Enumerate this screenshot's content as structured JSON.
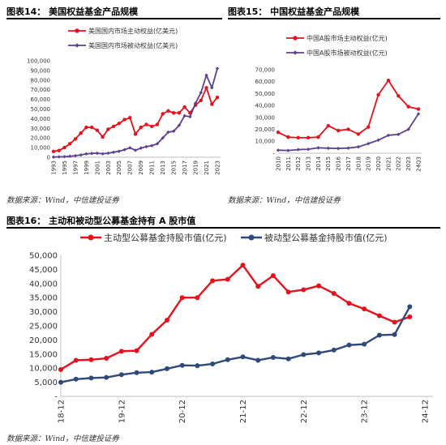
{
  "headers": {
    "fig14": "图表14：  美国权益基金产品规模",
    "fig15": "图表15：  中国权益基金产品规模",
    "fig16": "图表16：  主动和被动型公募基金持有 A 股市值"
  },
  "sources": {
    "fig14": "数据来源：Wind，中信建投证券",
    "fig15": "数据来源：Wind，中信建投证券",
    "fig16": "数据来源：Wind，中信建投证券"
  },
  "colors": {
    "active": "#e8101c",
    "passive": "#5e3f8f",
    "passive_blue": "#2f4a7a",
    "axis": "#bfbfbf"
  },
  "chart_data": [
    {
      "id": "fig14",
      "type": "line",
      "x": [
        "1993",
        "1994",
        "1995",
        "1996",
        "1997",
        "1998",
        "1999",
        "2000",
        "2001",
        "2002",
        "2003",
        "2004",
        "2005",
        "2006",
        "2007",
        "2008",
        "2009",
        "2010",
        "2011",
        "2012",
        "2013",
        "2014",
        "2015",
        "2016",
        "2017",
        "2018",
        "2019",
        "2020",
        "2021",
        "2022",
        "2023"
      ],
      "x_tick_labels": [
        "1993",
        "1995",
        "1997",
        "1999",
        "2001",
        "2003",
        "2005",
        "2007",
        "2009",
        "2011",
        "2013",
        "2015",
        "2017",
        "2019",
        "2021",
        "2023"
      ],
      "ylim": [
        0,
        100000
      ],
      "y_ticks": [
        0,
        10000,
        20000,
        30000,
        40000,
        50000,
        60000,
        70000,
        80000,
        90000,
        100000
      ],
      "y_tick_labels": [
        "0",
        "10,000",
        "20,000",
        "30,000",
        "40,000",
        "50,000",
        "60,000",
        "70,000",
        "80,000",
        "90,000",
        "100,000"
      ],
      "legend_position": "top",
      "series": [
        {
          "name": "美国国内市场主动权益(亿美元)",
          "marker": "circle",
          "values": [
            6000,
            7000,
            10000,
            14000,
            19000,
            25000,
            31000,
            31000,
            28000,
            21000,
            29000,
            32000,
            35000,
            39000,
            41000,
            24000,
            31000,
            34000,
            32000,
            34000,
            45000,
            48000,
            46000,
            46000,
            52000,
            46000,
            54000,
            59000,
            72000,
            55000,
            62000
          ]
        },
        {
          "name": "美国国内市场被动权益(亿美元)",
          "marker": "diamond",
          "values": [
            200,
            400,
            600,
            1000,
            1600,
            2400,
            3500,
            4000,
            4200,
            3600,
            4200,
            5200,
            6200,
            7800,
            9800,
            7200,
            9500,
            11000,
            12000,
            14000,
            20000,
            26000,
            27000,
            33000,
            43000,
            42000,
            56000,
            67000,
            85000,
            72000,
            92000
          ]
        }
      ]
    },
    {
      "id": "fig15",
      "type": "line",
      "x": [
        "2010",
        "2011",
        "2012",
        "2013",
        "2014",
        "2015",
        "2016",
        "2017",
        "2018",
        "2019",
        "2020",
        "2021",
        "2022",
        "2023",
        "24Q3"
      ],
      "x_tick_labels": [
        "2010",
        "2011",
        "2012",
        "2013",
        "2014",
        "2015",
        "2016",
        "2017",
        "2018",
        "2019",
        "2020",
        "2021",
        "2022",
        "2023",
        "24Q3"
      ],
      "ylim": [
        0,
        70000
      ],
      "y_ticks": [
        0,
        10000,
        20000,
        30000,
        40000,
        50000,
        60000,
        70000
      ],
      "y_tick_labels": [
        "-",
        "10,000",
        "20,000",
        "30,000",
        "40,000",
        "50,000",
        "60,000",
        "70,000"
      ],
      "legend_position": "top",
      "series": [
        {
          "name": "中国A股市场主动权益(亿元)",
          "marker": "circle",
          "values": [
            17500,
            13500,
            13000,
            13000,
            13500,
            23000,
            19000,
            20000,
            16000,
            22000,
            49000,
            61000,
            48000,
            39000,
            37000
          ]
        },
        {
          "name": "中国A股市场被动权益(亿元)",
          "marker": "diamond",
          "values": [
            2500,
            2300,
            3000,
            3300,
            4500,
            4200,
            4000,
            4300,
            5300,
            8000,
            11000,
            15000,
            15800,
            20000,
            33000
          ]
        }
      ]
    },
    {
      "id": "fig16",
      "type": "line",
      "x_tick_labels": [
        "18-12",
        "19-12",
        "20-12",
        "21-12",
        "22-12",
        "23-12",
        "24-12"
      ],
      "x_tick_positions": [
        0,
        4,
        8,
        12,
        16,
        20,
        24
      ],
      "ylim": [
        0,
        50000
      ],
      "y_ticks": [
        0,
        5000,
        10000,
        15000,
        20000,
        25000,
        30000,
        35000,
        40000,
        45000,
        50000
      ],
      "y_tick_labels": [
        "-",
        "5,000",
        "10,000",
        "15,000",
        "20,000",
        "25,000",
        "30,000",
        "35,000",
        "40,000",
        "45,000",
        "50,000"
      ],
      "legend_position": "top",
      "series": [
        {
          "name": "主动型公募基金持股市值(亿元)",
          "marker": "circle",
          "values": [
            9500,
            12800,
            13000,
            13500,
            16000,
            16200,
            22000,
            27000,
            35000,
            35000,
            41000,
            41500,
            46500,
            39000,
            42800,
            37000,
            37800,
            39200,
            36500,
            33000,
            31000,
            28600,
            26300,
            28200
          ]
        },
        {
          "name": "被动型公募基金持股市值(亿元)",
          "marker": "circle",
          "values": [
            5000,
            6100,
            6500,
            6700,
            7700,
            8400,
            8600,
            9800,
            11000,
            10900,
            11500,
            13000,
            14000,
            12800,
            13800,
            13300,
            14800,
            15400,
            16400,
            18200,
            18500,
            21700,
            21900,
            31800
          ]
        }
      ]
    }
  ]
}
